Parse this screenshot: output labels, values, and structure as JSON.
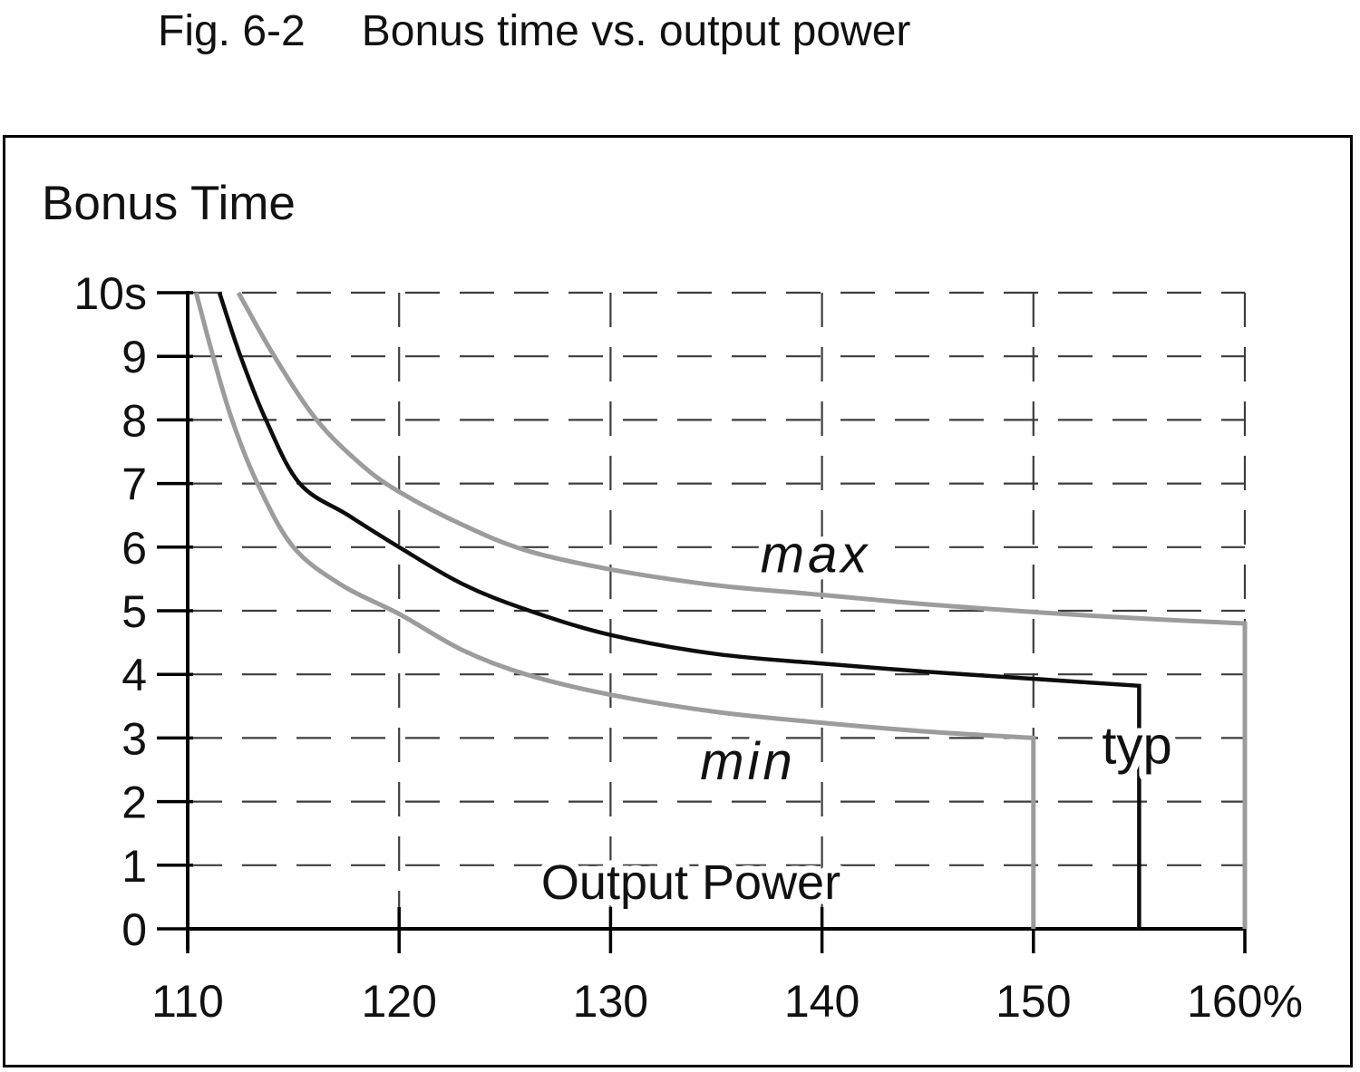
{
  "title": {
    "figure": "Fig. 6-2",
    "text": "Bonus time vs. output power"
  },
  "colors": {
    "background": "#ffffff",
    "border": "#000000",
    "text": "#111111",
    "grid": "#3d3d3d",
    "curve_black": "#0d0d0d",
    "curve_gray": "#9c9c9c"
  },
  "chart_data": {
    "type": "line",
    "title": "Fig. 6-2 Bonus time vs. output power",
    "xlabel": "Output Power",
    "ylabel": "Bonus Time",
    "x_unit": "%",
    "y_unit": "s",
    "xlim": [
      110,
      160
    ],
    "ylim": [
      0,
      10
    ],
    "grid": "dashed",
    "legend_position": "inline-labels",
    "x_ticks": {
      "values": [
        110,
        120,
        130,
        140,
        150,
        160
      ],
      "labels": [
        "110",
        "120",
        "130",
        "140",
        "150",
        "160%"
      ]
    },
    "y_ticks": {
      "values": [
        0,
        1,
        2,
        3,
        4,
        5,
        6,
        7,
        8,
        9,
        10
      ],
      "labels": [
        "0",
        "1",
        "2",
        "3",
        "4",
        "5",
        "6",
        "7",
        "8",
        "9",
        "10s"
      ]
    },
    "series": [
      {
        "name": "min",
        "color_key": "curve_gray",
        "drops_to_zero_at": 150,
        "points": [
          [
            110.4,
            10
          ],
          [
            111.2,
            9
          ],
          [
            112.1,
            8
          ],
          [
            113.3,
            7
          ],
          [
            115.0,
            6
          ],
          [
            117.3,
            5.4
          ],
          [
            120,
            4.95
          ],
          [
            123,
            4.38
          ],
          [
            126,
            4.0
          ],
          [
            130,
            3.68
          ],
          [
            135,
            3.41
          ],
          [
            140,
            3.24
          ],
          [
            145,
            3.1
          ],
          [
            150,
            3.0
          ]
        ]
      },
      {
        "name": "typ",
        "color_key": "curve_black",
        "drops_to_zero_at": 155,
        "points": [
          [
            111.5,
            10
          ],
          [
            112.5,
            9
          ],
          [
            113.7,
            8
          ],
          [
            115.3,
            7
          ],
          [
            117.6,
            6.5
          ],
          [
            120,
            6.0
          ],
          [
            123,
            5.42
          ],
          [
            126,
            5.02
          ],
          [
            130,
            4.62
          ],
          [
            135,
            4.32
          ],
          [
            140,
            4.17
          ],
          [
            145,
            4.04
          ],
          [
            150,
            3.93
          ],
          [
            155,
            3.82
          ]
        ]
      },
      {
        "name": "max",
        "color_key": "curve_gray",
        "drops_to_zero_at": 160,
        "points": [
          [
            112.4,
            10
          ],
          [
            114.1,
            9
          ],
          [
            116.1,
            8
          ],
          [
            118.2,
            7.3
          ],
          [
            120,
            6.87
          ],
          [
            123,
            6.35
          ],
          [
            126,
            5.95
          ],
          [
            130,
            5.65
          ],
          [
            135,
            5.4
          ],
          [
            140,
            5.25
          ],
          [
            145,
            5.1
          ],
          [
            150,
            4.98
          ],
          [
            155,
            4.88
          ],
          [
            160,
            4.8
          ]
        ]
      }
    ],
    "annotations": [
      {
        "text": "max",
        "x": 139.7,
        "y": 5.9,
        "style": "italic"
      },
      {
        "text": "min",
        "x": 136.5,
        "y": 2.65,
        "style": "italic"
      },
      {
        "text": "typ",
        "x": 154.9,
        "y": 2.9,
        "style": "normal"
      },
      {
        "text": "Output Power",
        "x": 133.8,
        "y": 0.75,
        "style": "normal"
      }
    ]
  }
}
